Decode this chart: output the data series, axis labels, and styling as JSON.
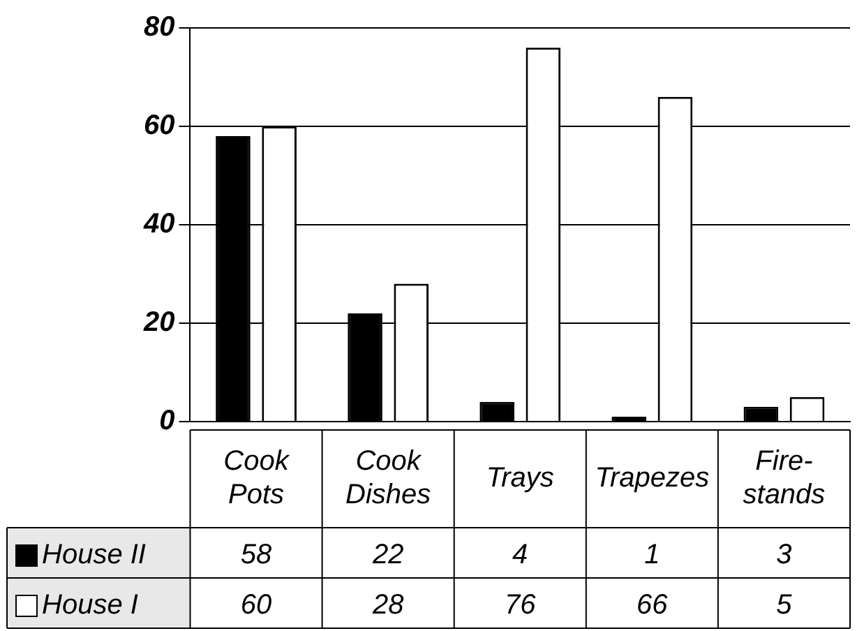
{
  "chart_data": {
    "type": "bar",
    "categories": [
      "Cook Pots",
      "Cook Dishes",
      "Trays",
      "Trapezes",
      "Fire-stands"
    ],
    "series": [
      {
        "name": "House II",
        "color": "#000000",
        "values": [
          58,
          22,
          4,
          1,
          3
        ]
      },
      {
        "name": "House I",
        "color": "#ffffff",
        "values": [
          60,
          28,
          76,
          66,
          5
        ]
      }
    ],
    "ylim": [
      0,
      80
    ],
    "yticks": [
      0,
      20,
      40,
      60,
      80
    ],
    "grid": "y",
    "legend": "bottom",
    "data_labels": true
  }
}
